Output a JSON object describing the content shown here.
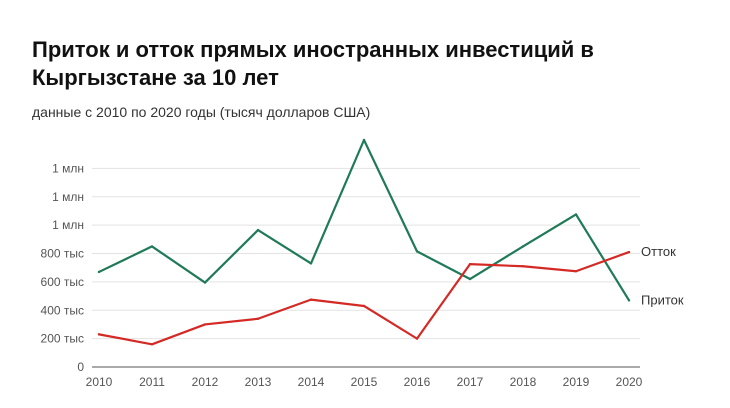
{
  "title": "Приток и отток прямых иностранных инвестиций в Кыргызстане за 10 лет",
  "subtitle": "данные с 2010 по 2020 годы (тысяч долларов США)",
  "chart_data": {
    "type": "line",
    "title": "Приток и отток прямых иностранных инвестиций в Кыргызстане за 10 лет",
    "subtitle": "данные с 2010 по 2020 годы (тысяч долларов США)",
    "x": [
      "2010",
      "2011",
      "2012",
      "2013",
      "2014",
      "2015",
      "2016",
      "2017",
      "2018",
      "2019",
      "2020"
    ],
    "series": [
      {
        "name": "Приток",
        "color": "#1f7a57",
        "values": [
          670,
          850,
          595,
          965,
          730,
          1600,
          815,
          620,
          850,
          1075,
          470
        ]
      },
      {
        "name": "Отток",
        "color": "#d42a25",
        "values": [
          230,
          160,
          300,
          340,
          475,
          430,
          200,
          725,
          710,
          675,
          810
        ]
      }
    ],
    "ylim": [
      0,
      1600
    ],
    "y_ticks": [
      0,
      200,
      400,
      600,
      800,
      1000,
      1200,
      1400
    ],
    "y_tick_labels": [
      "0",
      "200 тыс",
      "400 тыс",
      "600 тыс",
      "800 тыс",
      "1 млн",
      "1 млн",
      "1 млн"
    ],
    "grid": true,
    "legend": "end-of-line labels"
  }
}
